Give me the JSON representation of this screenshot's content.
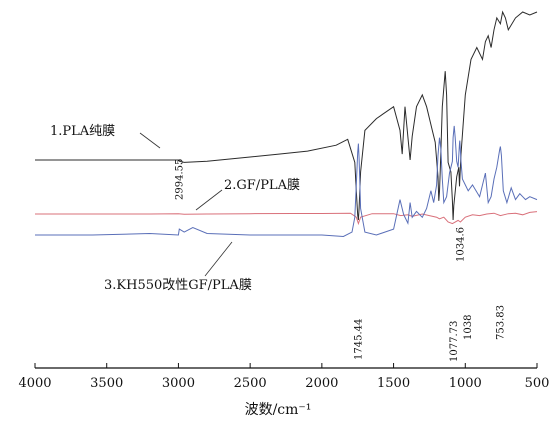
{
  "chart_data": {
    "type": "line",
    "xlabel": "波数/cm⁻¹",
    "ylabel": "",
    "xlim": [
      4000,
      500
    ],
    "x_reversed": true,
    "x_ticks": [
      4000,
      3500,
      3000,
      2500,
      2000,
      1500,
      1000,
      500
    ],
    "x_tick_labels": [
      "4000",
      "3500",
      "3000",
      "2500",
      "2000",
      "1500",
      "1000",
      "500"
    ],
    "ylim": [
      0,
      1
    ],
    "grid": false,
    "series": [
      {
        "name": "1.PLA纯膜",
        "color": "#2b2b2b",
        "x": [
          4000,
          3600,
          3200,
          3000,
          2994,
          2960,
          2800,
          2500,
          2300,
          2100,
          1900,
          1820,
          1770,
          1760,
          1750,
          1745,
          1740,
          1730,
          1700,
          1620,
          1500,
          1455,
          1440,
          1420,
          1385,
          1370,
          1340,
          1300,
          1270,
          1230,
          1210,
          1190,
          1185,
          1180,
          1175,
          1160,
          1140,
          1130,
          1120,
          1100,
          1090,
          1085,
          1080,
          1060,
          1045,
          1040,
          1030,
          1000,
          960,
          920,
          880,
          860,
          840,
          820,
          800,
          780,
          755,
          740,
          720,
          700,
          650,
          600,
          550,
          500
        ],
        "y": [
          0.75,
          0.75,
          0.75,
          0.75,
          0.745,
          0.74,
          0.745,
          0.755,
          0.76,
          0.765,
          0.775,
          0.785,
          0.74,
          0.62,
          0.52,
          0.5,
          0.55,
          0.7,
          0.8,
          0.82,
          0.84,
          0.8,
          0.76,
          0.84,
          0.75,
          0.79,
          0.84,
          0.86,
          0.84,
          0.8,
          0.78,
          0.68,
          0.58,
          0.62,
          0.7,
          0.84,
          0.9,
          0.86,
          0.74,
          0.7,
          0.58,
          0.5,
          0.56,
          0.68,
          0.72,
          0.64,
          0.76,
          0.86,
          0.92,
          0.94,
          0.92,
          0.95,
          0.96,
          0.94,
          0.97,
          0.99,
          0.98,
          1.0,
          0.99,
          0.97,
          0.99,
          1.0,
          0.995,
          1.0
        ]
      },
      {
        "name": "2.GF/PLA膜",
        "color": "#d9707a",
        "x": [
          4000,
          3600,
          3200,
          3000,
          2960,
          2800,
          2500,
          2200,
          2000,
          1800,
          1760,
          1745,
          1730,
          1650,
          1500,
          1450,
          1400,
          1370,
          1300,
          1250,
          1200,
          1180,
          1150,
          1120,
          1090,
          1080,
          1050,
          1034,
          1000,
          950,
          900,
          850,
          800,
          755,
          700,
          650,
          600,
          550,
          500
        ],
        "y": [
          0.46,
          0.46,
          0.46,
          0.462,
          0.458,
          0.46,
          0.462,
          0.463,
          0.463,
          0.465,
          0.44,
          0.4,
          0.44,
          0.462,
          0.462,
          0.45,
          0.455,
          0.445,
          0.46,
          0.45,
          0.44,
          0.43,
          0.44,
          0.41,
          0.4,
          0.405,
          0.42,
          0.41,
          0.44,
          0.455,
          0.45,
          0.46,
          0.465,
          0.45,
          0.462,
          0.465,
          0.455,
          0.47,
          0.475
        ]
      },
      {
        "name": "3.KH550改性GF/PLA膜",
        "color": "#5a6fb8",
        "x": [
          4000,
          3600,
          3200,
          3000,
          2994,
          2960,
          2900,
          2800,
          2500,
          2200,
          2000,
          1850,
          1790,
          1770,
          1760,
          1750,
          1745,
          1740,
          1730,
          1700,
          1620,
          1500,
          1455,
          1430,
          1400,
          1385,
          1370,
          1340,
          1300,
          1270,
          1240,
          1220,
          1200,
          1190,
          1180,
          1170,
          1160,
          1150,
          1130,
          1110,
          1090,
          1085,
          1077,
          1070,
          1060,
          1050,
          1040,
          1038,
          1030,
          1020,
          1000,
          980,
          950,
          900,
          860,
          840,
          820,
          800,
          780,
          760,
          755,
          748,
          735,
          710,
          680,
          650,
          620,
          600,
          580,
          550,
          500
        ],
        "y": [
          0.39,
          0.39,
          0.385,
          0.39,
          0.37,
          0.38,
          0.365,
          0.385,
          0.39,
          0.39,
          0.39,
          0.395,
          0.38,
          0.33,
          0.22,
          0.11,
          0.08,
          0.13,
          0.3,
          0.38,
          0.39,
          0.37,
          0.27,
          0.32,
          0.35,
          0.28,
          0.33,
          0.31,
          0.33,
          0.3,
          0.24,
          0.28,
          0.22,
          0.12,
          0.06,
          0.1,
          0.2,
          0.28,
          0.26,
          0.18,
          0.14,
          0.06,
          0.02,
          0.06,
          0.14,
          0.16,
          0.08,
          0.07,
          0.14,
          0.2,
          0.22,
          0.24,
          0.22,
          0.26,
          0.18,
          0.28,
          0.26,
          0.2,
          0.16,
          0.1,
          0.09,
          0.12,
          0.24,
          0.28,
          0.23,
          0.27,
          0.25,
          0.26,
          0.27,
          0.26,
          0.27
        ]
      }
    ],
    "series_labels": [
      {
        "text": "1.PLA纯膜",
        "series": 0
      },
      {
        "text": "2.GF/PLA膜",
        "series": 1
      },
      {
        "text": "3.KH550改性GF/PLA膜",
        "series": 2
      }
    ],
    "annotations": [
      {
        "text": "2994.55",
        "x": 2994
      },
      {
        "text": "1745.44",
        "x": 1745
      },
      {
        "text": "1077.73",
        "x": 1077
      },
      {
        "text": "1034.6",
        "x": 1034
      },
      {
        "text": "1038",
        "x": 1038
      },
      {
        "text": "753.83",
        "x": 753
      }
    ]
  }
}
